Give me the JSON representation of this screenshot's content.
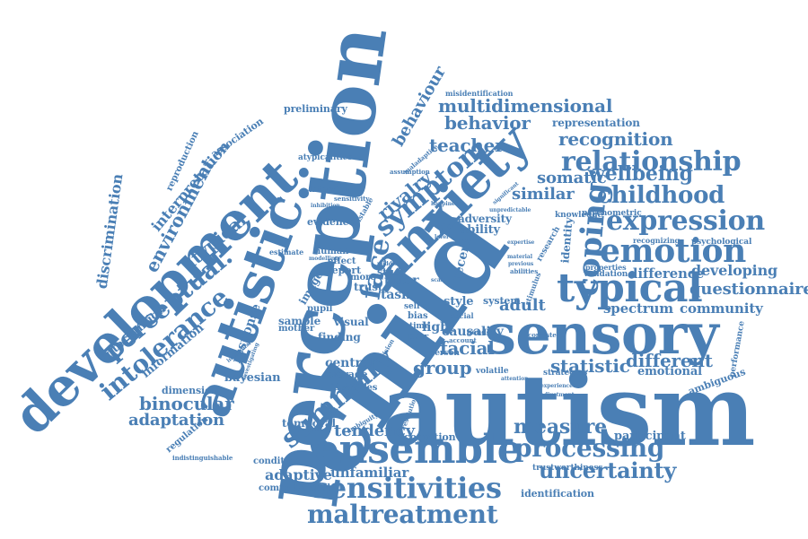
{
  "accent_color": "#4a7fb5",
  "words": [
    {
      "id": "autism",
      "text": "autism"
    },
    {
      "id": "child",
      "text": "child"
    },
    {
      "id": "perception",
      "text": "perception"
    },
    {
      "id": "development",
      "text": "development."
    },
    {
      "id": "autistic",
      "text": "autistic."
    },
    {
      "id": "sensory",
      "text": "sensory"
    },
    {
      "id": "anxiety",
      "text": "anxiety"
    },
    {
      "id": "ensemble",
      "text": "ensemble"
    },
    {
      "id": "typical",
      "text": "typical"
    },
    {
      "id": "sensitivities",
      "text": "sensitivities"
    },
    {
      "id": "emotion",
      "text": "emotion"
    },
    {
      "id": "maltreatment",
      "text": "maltreatment"
    },
    {
      "id": "expression",
      "text": "expression"
    },
    {
      "id": "relationship",
      "text": "relationship"
    },
    {
      "id": "childhood",
      "text": "childhood"
    },
    {
      "id": "coping",
      "text": "coping"
    },
    {
      "id": "processing",
      "text": "processing"
    },
    {
      "id": "uncertainty",
      "text": "uncertainty"
    },
    {
      "id": "summary",
      "text": "summary"
    },
    {
      "id": "intolerance",
      "text": "intolerance"
    },
    {
      "id": "perceptual",
      "text": "perceptual."
    },
    {
      "id": "symptom",
      "text": "symptom"
    },
    {
      "id": "multidimensional",
      "text": "multidimensional"
    },
    {
      "id": "face",
      "text": "face"
    },
    {
      "id": "measure",
      "text": "measure"
    },
    {
      "id": "wellbeing",
      "text": "wellbeing"
    },
    {
      "id": "recognition",
      "text": "recognition"
    },
    {
      "id": "behavior",
      "text": "behavior"
    },
    {
      "id": "questionnaire",
      "text": "questionnaire"
    },
    {
      "id": "binocular",
      "text": "binocular"
    },
    {
      "id": "adaptation",
      "text": "adaptation"
    },
    {
      "id": "statistic",
      "text": "statistic"
    },
    {
      "id": "different",
      "text": "different"
    },
    {
      "id": "tendency",
      "text": "tendency"
    },
    {
      "id": "group",
      "text": "group"
    },
    {
      "id": "facial",
      "text": "facial"
    },
    {
      "id": "atypical",
      "text": "atypical"
    },
    {
      "id": "environment",
      "text": "environment"
    },
    {
      "id": "behaviour",
      "text": "behaviour"
    },
    {
      "id": "similar",
      "text": "similar"
    },
    {
      "id": "teacher",
      "text": "teacher"
    },
    {
      "id": "somatic",
      "text": "somatic"
    },
    {
      "id": "rivalry",
      "text": "rivalry"
    },
    {
      "id": "developing",
      "text": "developing"
    },
    {
      "id": "adaptive",
      "text": "adaptive"
    },
    {
      "id": "interpretation",
      "text": "interpretation"
    },
    {
      "id": "discrimination",
      "text": "discrimination"
    },
    {
      "id": "spectrum",
      "text": "spectrum"
    },
    {
      "id": "community",
      "text": "community"
    },
    {
      "id": "difference",
      "text": "difference"
    },
    {
      "id": "unfamiliar",
      "text": "unfamiliar"
    },
    {
      "id": "adult",
      "text": "adult"
    },
    {
      "id": "central",
      "text": "central"
    },
    {
      "id": "bayesian",
      "text": "bayesian"
    },
    {
      "id": "emotional",
      "text": "emotional"
    },
    {
      "id": "participant",
      "text": "participant"
    },
    {
      "id": "identification",
      "text": "identification"
    },
    {
      "id": "dimension",
      "text": "dimension"
    },
    {
      "id": "intervention",
      "text": "intervention"
    },
    {
      "id": "information",
      "text": "information"
    },
    {
      "id": "response",
      "text": "response"
    },
    {
      "id": "representation",
      "text": "representation"
    },
    {
      "id": "prior",
      "text": "prior"
    },
    {
      "id": "task",
      "text": "task"
    },
    {
      "id": "ability",
      "text": "ability"
    },
    {
      "id": "adversity",
      "text": "adversity"
    },
    {
      "id": "preliminary",
      "text": "preliminary"
    },
    {
      "id": "association",
      "text": "association"
    },
    {
      "id": "ambiguous",
      "text": "ambiguous"
    },
    {
      "id": "cognition",
      "text": "cognition"
    },
    {
      "id": "trustworthiness",
      "text": "trustworthiness"
    },
    {
      "id": "regulation",
      "text": "regulation"
    },
    {
      "id": "temporal",
      "text": "temporal"
    },
    {
      "id": "computational",
      "text": "computational"
    },
    {
      "id": "condition",
      "text": "condition"
    },
    {
      "id": "finding",
      "text": "finding"
    },
    {
      "id": "visual",
      "text": "visual"
    },
    {
      "id": "sample",
      "text": "sample"
    },
    {
      "id": "trust",
      "text": "trust"
    },
    {
      "id": "image",
      "text": "image"
    },
    {
      "id": "report",
      "text": "report"
    },
    {
      "id": "evidence",
      "text": "evidence"
    },
    {
      "id": "more",
      "text": "more"
    },
    {
      "id": "light",
      "text": "light"
    },
    {
      "id": "study",
      "text": "study"
    },
    {
      "id": "recent",
      "text": "recent"
    },
    {
      "id": "causality",
      "text": "causality"
    },
    {
      "id": "style",
      "text": "style"
    },
    {
      "id": "system",
      "text": "system"
    },
    {
      "id": "identity",
      "text": "identity"
    },
    {
      "id": "psychometric",
      "text": "psychometric"
    },
    {
      "id": "knowledge",
      "text": "knowledge"
    },
    {
      "id": "validation",
      "text": "validation"
    },
    {
      "id": "properties",
      "text": "properties"
    },
    {
      "id": "psychological",
      "text": "psychological"
    },
    {
      "id": "recognizing",
      "text": "recognizing"
    },
    {
      "id": "performance",
      "text": "performance"
    },
    {
      "id": "reproduction",
      "text": "reproduction"
    },
    {
      "id": "atypicalities",
      "text": "atypicalities"
    },
    {
      "id": "interview",
      "text": "interview"
    },
    {
      "id": "misidentification",
      "text": "misidentification"
    },
    {
      "id": "research",
      "text": "research"
    },
    {
      "id": "strategies",
      "text": "strategies"
    },
    {
      "id": "average",
      "text": "average"
    },
    {
      "id": "identities",
      "text": "identities"
    },
    {
      "id": "effect",
      "text": "effect"
    },
    {
      "id": "human",
      "text": "human"
    },
    {
      "id": "estimate",
      "text": "estimate"
    },
    {
      "id": "mother",
      "text": "mother"
    },
    {
      "id": "pupil",
      "text": "pupil"
    },
    {
      "id": "bias",
      "text": "bias"
    },
    {
      "id": "time",
      "text": "time"
    },
    {
      "id": "peer",
      "text": "peer"
    },
    {
      "id": "person",
      "text": "person"
    },
    {
      "id": "volatile",
      "text": "volatile"
    },
    {
      "id": "indistinguishable",
      "text": "indistinguishable"
    },
    {
      "id": "gender",
      "text": "gender"
    },
    {
      "id": "self",
      "text": "self"
    },
    {
      "id": "sensitivity",
      "text": "sensitivity"
    },
    {
      "id": "assumption",
      "text": "assumption"
    },
    {
      "id": "maladaptive",
      "text": "maladaptive"
    },
    {
      "id": "bistable",
      "text": "bistable"
    },
    {
      "id": "resolution",
      "text": "resolution"
    },
    {
      "id": "ambiguity",
      "text": "ambiguity"
    },
    {
      "id": "abilities",
      "text": "abilities"
    },
    {
      "id": "consistent",
      "text": "consistent"
    },
    {
      "id": "social",
      "text": "social"
    },
    {
      "id": "account",
      "text": "account"
    },
    {
      "id": "vision",
      "text": "vision"
    },
    {
      "id": "modelling",
      "text": "modelling"
    },
    {
      "id": "inhibition",
      "text": "inhibition"
    },
    {
      "id": "individual",
      "text": "individual"
    },
    {
      "id": "investigating",
      "text": "investigating"
    },
    {
      "id": "adjustment",
      "text": "adjustment"
    },
    {
      "id": "experienced",
      "text": "experienced"
    },
    {
      "id": "happiness",
      "text": "happiness"
    },
    {
      "id": "significant",
      "text": "significant"
    },
    {
      "id": "unpredictable",
      "text": "unpredictable"
    },
    {
      "id": "material",
      "text": "material"
    },
    {
      "id": "previous",
      "text": "previous"
    },
    {
      "id": "middle",
      "text": "middle"
    },
    {
      "id": "scale",
      "text": "scale"
    },
    {
      "id": "level",
      "text": "level"
    },
    {
      "id": "stimulus",
      "text": "stimulus"
    },
    {
      "id": "attention",
      "text": "attention"
    },
    {
      "id": "expertise",
      "text": "expertise"
    }
  ]
}
